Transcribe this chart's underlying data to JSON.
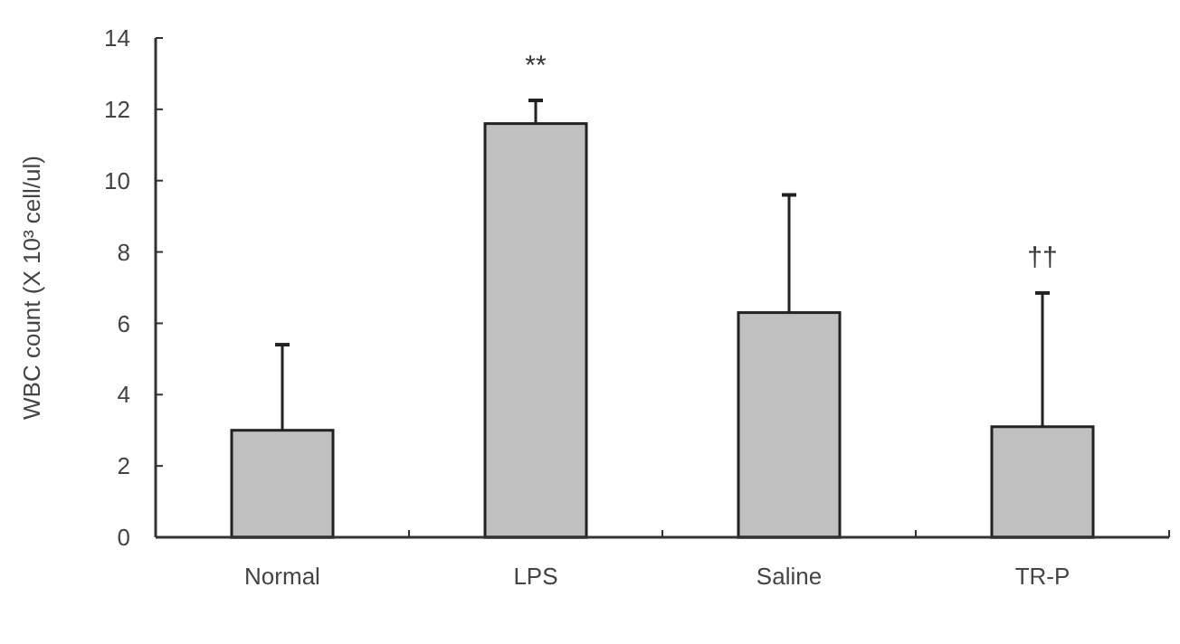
{
  "chart_data": {
    "type": "bar",
    "ylabel": "WBC count (X 10³ cell/ul)",
    "categories": [
      "Normal",
      "LPS",
      "Saline",
      "TR-P"
    ],
    "values": [
      3.0,
      11.6,
      6.3,
      3.1
    ],
    "errors": [
      [
        3.0,
        5.4
      ],
      [
        11.6,
        12.25
      ],
      [
        6.3,
        9.6
      ],
      [
        3.1,
        6.85
      ]
    ],
    "color": "#c0c0c0",
    "ylim": [
      0,
      14
    ],
    "yticks": [
      0,
      2,
      4,
      6,
      8,
      10,
      12,
      14
    ],
    "grid": false,
    "annotations": [
      {
        "text": "**",
        "x": "LPS",
        "y": 12.25
      },
      {
        "text": "††",
        "x": "TR-P",
        "y": 6.85
      }
    ]
  }
}
